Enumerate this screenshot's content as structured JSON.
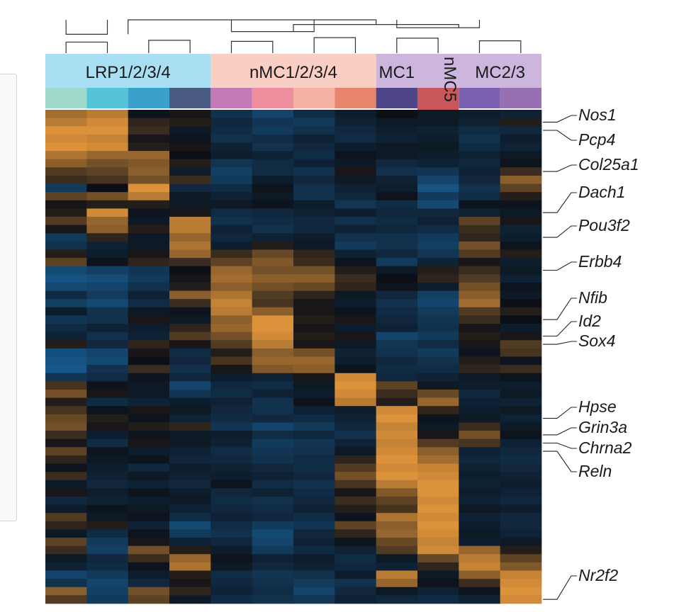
{
  "chart_data": {
    "type": "heatmap",
    "title": "",
    "xlabel": "",
    "ylabel": "",
    "groups": [
      {
        "label": "LRP1/2/3/4",
        "color": "#a9dff2",
        "columns": 4
      },
      {
        "label": "nMC1/2/3/4",
        "color": "#f9cfc3",
        "columns": 4
      },
      {
        "label": "MC1",
        "color": "#cdb6dd",
        "columns": 1
      },
      {
        "label": "nMC5",
        "color": "#cdb6dd",
        "columns": 1,
        "vertical": true
      },
      {
        "label": "MC2/3",
        "color": "#cdb6dd",
        "columns": 2
      }
    ],
    "column_colors": [
      "#9fd9c9",
      "#55c4d9",
      "#3aa0cc",
      "#4b5a80",
      "#c47ab8",
      "#ee8e9e",
      "#f5b3a3",
      "#e8836c",
      "#4d4588",
      "#b94a4c",
      "#7b62b0",
      "#9670b3"
    ],
    "dendrogram": [
      {
        "a": [
          0,
          0
        ],
        "b": [
          1,
          0
        ],
        "h": 0.15
      },
      {
        "a": [
          2,
          0
        ],
        "b": [
          3,
          0
        ],
        "h": 0.22
      },
      {
        "a": [
          0,
          1
        ],
        "b": [
          1,
          1
        ],
        "h": 0.45
      },
      {
        "a": [
          4,
          0
        ],
        "b": [
          5,
          0
        ],
        "h": 0.18
      },
      {
        "a": [
          6,
          0
        ],
        "b": [
          7,
          0
        ],
        "h": 0.32
      },
      {
        "a": [
          4,
          1
        ],
        "b": [
          6,
          1
        ],
        "h": 0.55
      },
      {
        "a": [
          8,
          0
        ],
        "b": [
          9,
          0
        ],
        "h": 0.3
      },
      {
        "a": [
          10,
          0
        ],
        "b": [
          11,
          0
        ],
        "h": 0.2
      },
      {
        "a": [
          8,
          1
        ],
        "b": [
          10,
          1
        ],
        "h": 0.7
      },
      {
        "a": [
          5.5,
          0.55
        ],
        "b": [
          9.5,
          0.7
        ],
        "h": 0.82
      },
      {
        "a": [
          1.5,
          0.45
        ],
        "b": [
          7.5,
          0.82
        ],
        "h": 1.0
      }
    ],
    "gene_labels": [
      {
        "label": "Nos1",
        "row": 1
      },
      {
        "label": "Pcp4",
        "row": 2
      },
      {
        "label": "Col25a1",
        "row": 7
      },
      {
        "label": "Dach1",
        "row": 12
      },
      {
        "label": "Pou3f2",
        "row": 15
      },
      {
        "label": "Erbb4",
        "row": 19
      },
      {
        "label": "Nfib",
        "row": 25
      },
      {
        "label": "Id2",
        "row": 27
      },
      {
        "label": "Sox4",
        "row": 28
      },
      {
        "label": "Hpse",
        "row": 37
      },
      {
        "label": "Grin3a",
        "row": 39
      },
      {
        "label": "Chrna2",
        "row": 40
      },
      {
        "label": "Reln",
        "row": 41
      },
      {
        "label": "Nr2f2",
        "row": 59
      }
    ],
    "color_scale": {
      "low": "#1a6fb0",
      "mid": "#0c0f16",
      "high": "#f3a03e"
    },
    "rows": 60,
    "values": [
      [
        0.65,
        0.75,
        -0.05,
        0.05,
        -0.35,
        -0.55,
        -0.3,
        -0.15,
        0,
        -0.1,
        -0.15,
        -0.2
      ],
      [
        0.75,
        0.85,
        0.15,
        0.1,
        -0.25,
        -0.4,
        -0.45,
        -0.2,
        -0.1,
        -0.1,
        -0.2,
        0.1
      ],
      [
        0.9,
        0.9,
        0.2,
        -0.1,
        -0.3,
        -0.45,
        -0.35,
        -0.25,
        -0.15,
        -0.2,
        -0.3,
        -0.25
      ],
      [
        0.85,
        0.8,
        0.05,
        -0.05,
        -0.35,
        -0.3,
        -0.2,
        -0.3,
        -0.2,
        -0.15,
        -0.35,
        -0.15
      ],
      [
        0.9,
        0.85,
        0.1,
        0.05,
        -0.2,
        -0.35,
        -0.25,
        -0.15,
        -0.1,
        -0.1,
        -0.3,
        -0.2
      ],
      [
        0.7,
        0.6,
        0.6,
        0,
        -0.15,
        -0.2,
        -0.3,
        -0.05,
        -0.1,
        -0.15,
        -0.2,
        -0.1
      ],
      [
        0.55,
        0.45,
        0.5,
        0.1,
        -0.4,
        -0.3,
        -0.2,
        -0.1,
        -0.25,
        -0.2,
        -0.25,
        -0.05
      ],
      [
        0.3,
        0.35,
        0.55,
        -0.15,
        -0.5,
        -0.3,
        -0.35,
        0.05,
        -0.35,
        -0.4,
        -0.2,
        0.2
      ],
      [
        0.2,
        0.25,
        0.45,
        0.2,
        -0.45,
        -0.15,
        -0.25,
        -0.1,
        -0.2,
        -0.55,
        -0.25,
        0.55
      ],
      [
        -0.45,
        0,
        0.9,
        -0.25,
        -0.3,
        -0.05,
        -0.35,
        -0.2,
        -0.15,
        -0.7,
        -0.35,
        0.35
      ],
      [
        0.35,
        0.45,
        0.75,
        -0.1,
        -0.2,
        -0.1,
        -0.35,
        -0.25,
        -0.05,
        -0.45,
        -0.3,
        0.1
      ],
      [
        0.05,
        0.1,
        0.1,
        -0.1,
        -0.1,
        -0.05,
        -0.15,
        -0.4,
        -0.3,
        -0.6,
        -0.05,
        -0.05
      ],
      [
        0.1,
        0.85,
        -0.05,
        0.05,
        -0.3,
        -0.25,
        -0.2,
        -0.15,
        -0.25,
        -0.25,
        -0.2,
        -0.1
      ],
      [
        0.3,
        0.6,
        -0.1,
        0.75,
        -0.35,
        -0.3,
        -0.25,
        -0.35,
        -0.3,
        -0.2,
        0.35,
        0.05
      ],
      [
        0.05,
        0.55,
        0.1,
        0.75,
        -0.2,
        -0.35,
        -0.25,
        -0.2,
        -0.25,
        -0.3,
        0.2,
        -0.2
      ],
      [
        -0.45,
        0.15,
        -0.1,
        0.6,
        -0.25,
        -0.2,
        -0.15,
        -0.35,
        -0.35,
        -0.45,
        0.15,
        -0.15
      ],
      [
        -0.35,
        -0.2,
        -0.1,
        0.7,
        -0.15,
        0.1,
        -0.1,
        -0.45,
        -0.35,
        -0.5,
        0.45,
        -0.05
      ],
      [
        0.1,
        -0.15,
        0.05,
        0.6,
        0.2,
        0.4,
        0.15,
        -0.2,
        -0.25,
        -0.4,
        0.3,
        0.1
      ],
      [
        0.35,
        -0.05,
        0.15,
        0.2,
        0.35,
        0.5,
        0.2,
        -0.05,
        -0.45,
        -0.2,
        0.05,
        -0.15
      ],
      [
        -0.6,
        -0.5,
        -0.4,
        0,
        0.6,
        0.45,
        0.45,
        0.1,
        -0.1,
        0.1,
        0.2,
        -0.1
      ],
      [
        -0.7,
        -0.65,
        -0.45,
        0.05,
        0.65,
        0.55,
        0.55,
        0.2,
        0,
        0.15,
        0.3,
        -0.2
      ],
      [
        -0.6,
        -0.55,
        -0.35,
        0.1,
        0.55,
        0.45,
        0.4,
        0.15,
        -0.05,
        -0.15,
        0.45,
        -0.05
      ],
      [
        -0.3,
        -0.45,
        -0.2,
        0.55,
        0.7,
        0.3,
        0.15,
        -0.1,
        -0.25,
        -0.5,
        0.55,
        -0.1
      ],
      [
        -0.5,
        -0.6,
        -0.3,
        0.2,
        0.8,
        0.25,
        0.05,
        -0.15,
        -0.35,
        -0.55,
        0.65,
        0
      ],
      [
        -0.15,
        -0.35,
        -0.1,
        -0.05,
        0.75,
        0.55,
        0.05,
        -0.05,
        -0.3,
        -0.45,
        0.3,
        0.1
      ],
      [
        -0.4,
        -0.35,
        0.05,
        -0.1,
        0.55,
        0.9,
        0.1,
        0.05,
        -0.25,
        -0.4,
        0.2,
        0
      ],
      [
        -0.3,
        -0.2,
        -0.15,
        0.15,
        0.6,
        0.9,
        0.05,
        -0.15,
        -0.2,
        -0.35,
        0.05,
        -0.15
      ],
      [
        -0.2,
        -0.35,
        -0.2,
        0.3,
        0.45,
        0.85,
        0.1,
        0.05,
        -0.55,
        -0.45,
        0.1,
        0.05
      ],
      [
        0.1,
        -0.25,
        0.15,
        0.05,
        0.3,
        0.75,
        0.05,
        -0.1,
        -0.4,
        -0.3,
        0.05,
        0.3
      ],
      [
        -0.65,
        -0.55,
        0.05,
        -0.3,
        0.1,
        0.55,
        0.45,
        -0.2,
        -0.35,
        -0.45,
        -0.05,
        0.25
      ],
      [
        -0.7,
        -0.6,
        0,
        -0.25,
        0.25,
        0.6,
        0.6,
        -0.15,
        -0.25,
        -0.35,
        0.1,
        -0.05
      ],
      [
        -0.75,
        -0.35,
        0.2,
        -0.35,
        0.05,
        0.5,
        0.55,
        -0.05,
        -0.3,
        -0.3,
        0.15,
        0.2
      ],
      [
        -0.4,
        -0.3,
        -0.05,
        -0.25,
        -0.15,
        -0.2,
        0.05,
        0.85,
        -0.25,
        -0.2,
        -0.1,
        -0.05
      ],
      [
        0.25,
        -0.05,
        -0.1,
        -0.55,
        -0.25,
        -0.3,
        -0.1,
        0.9,
        0.35,
        -0.1,
        -0.15,
        -0.15
      ],
      [
        0.45,
        0.05,
        -0.1,
        -0.4,
        -0.3,
        -0.2,
        -0.15,
        0.85,
        0.2,
        0.4,
        -0.25,
        -0.1
      ],
      [
        0.1,
        -0.3,
        -0.2,
        -0.15,
        -0.2,
        -0.35,
        -0.05,
        0.75,
        0.1,
        0.6,
        -0.2,
        -0.2
      ],
      [
        0.25,
        -0.05,
        0.05,
        -0.1,
        -0.25,
        -0.35,
        -0.2,
        -0.15,
        0.85,
        0.15,
        -0.15,
        -0.1
      ],
      [
        0.4,
        0.1,
        -0.05,
        -0.2,
        -0.3,
        -0.25,
        -0.3,
        -0.2,
        0.9,
        -0.05,
        -0.1,
        -0.2
      ],
      [
        0.45,
        0.05,
        0.1,
        0.15,
        -0.4,
        -0.55,
        -0.45,
        -0.25,
        0.8,
        -0.1,
        0.2,
        -0.1
      ],
      [
        0.2,
        -0.15,
        -0.05,
        -0.1,
        -0.15,
        -0.3,
        -0.25,
        -0.35,
        0.85,
        0.05,
        0.45,
        -0.05
      ],
      [
        0.05,
        -0.3,
        0.05,
        -0.1,
        -0.2,
        -0.45,
        -0.4,
        -0.2,
        0.8,
        0.3,
        0.25,
        -0.2
      ],
      [
        0.35,
        -0.05,
        -0.15,
        -0.2,
        -0.3,
        -0.4,
        -0.35,
        -0.1,
        0.85,
        0.55,
        -0.2,
        -0.25
      ],
      [
        0.15,
        -0.1,
        -0.05,
        -0.25,
        -0.25,
        -0.35,
        -0.3,
        0.15,
        0.9,
        0.65,
        -0.25,
        -0.3
      ],
      [
        -0.05,
        -0.15,
        -0.25,
        -0.15,
        -0.2,
        -0.25,
        -0.3,
        0.3,
        0.85,
        0.8,
        -0.2,
        -0.25
      ],
      [
        0.2,
        -0.2,
        -0.1,
        -0.2,
        -0.15,
        -0.2,
        -0.25,
        0.45,
        0.9,
        0.85,
        -0.15,
        -0.2
      ],
      [
        -0.1,
        -0.25,
        -0.2,
        -0.25,
        -0.05,
        -0.3,
        -0.35,
        0.25,
        0.75,
        0.9,
        -0.2,
        -0.15
      ],
      [
        0.05,
        -0.15,
        -0.05,
        -0.15,
        -0.25,
        -0.2,
        -0.3,
        0.05,
        0.5,
        0.9,
        -0.15,
        -0.2
      ],
      [
        -0.25,
        -0.2,
        -0.15,
        -0.1,
        -0.3,
        -0.35,
        -0.25,
        0.2,
        0.35,
        0.85,
        -0.2,
        -0.25
      ],
      [
        -0.15,
        -0.05,
        -0.1,
        -0.2,
        -0.25,
        -0.3,
        -0.2,
        0.1,
        0.25,
        0.9,
        -0.1,
        -0.15
      ],
      [
        0.3,
        -0.1,
        -0.05,
        -0.3,
        -0.2,
        -0.25,
        -0.3,
        -0.05,
        0.7,
        0.85,
        -0.2,
        -0.25
      ],
      [
        0.15,
        0.1,
        -0.2,
        -0.6,
        -0.3,
        -0.45,
        -0.4,
        0.35,
        0.55,
        0.9,
        -0.15,
        -0.25
      ],
      [
        -0.1,
        -0.3,
        -0.05,
        -0.45,
        -0.35,
        -0.6,
        -0.25,
        0.15,
        0.6,
        0.85,
        -0.1,
        -0.2
      ],
      [
        0.35,
        -0.45,
        0.05,
        -0.2,
        -0.25,
        -0.55,
        -0.2,
        -0.05,
        0.4,
        0.8,
        -0.15,
        -0.1
      ],
      [
        0.2,
        -0.5,
        0.45,
        0.1,
        -0.15,
        -0.45,
        -0.3,
        -0.2,
        0.3,
        0.85,
        0.6,
        0.1
      ],
      [
        -0.1,
        -0.25,
        0.2,
        0.6,
        -0.05,
        -0.2,
        -0.15,
        -0.3,
        -0.1,
        0.4,
        0.75,
        0.35
      ],
      [
        -0.2,
        -0.3,
        -0.05,
        0.7,
        -0.1,
        -0.25,
        -0.2,
        -0.25,
        -0.2,
        0.15,
        0.8,
        0.5
      ],
      [
        -0.55,
        -0.45,
        -0.15,
        0.1,
        -0.3,
        -0.4,
        -0.35,
        -0.15,
        0.75,
        -0.1,
        0.55,
        0.8
      ],
      [
        -0.35,
        -0.55,
        -0.25,
        0.05,
        -0.25,
        -0.35,
        -0.45,
        -0.35,
        0.6,
        -0.05,
        0.2,
        0.85
      ],
      [
        0.55,
        -0.5,
        0.45,
        0.15,
        -0.2,
        -0.3,
        -0.55,
        -0.25,
        -0.1,
        -0.2,
        -0.05,
        0.9
      ],
      [
        0.3,
        -0.45,
        0.35,
        -0.1,
        -0.3,
        -0.35,
        -0.4,
        -0.2,
        -0.25,
        -0.3,
        -0.2,
        0.85
      ]
    ]
  }
}
